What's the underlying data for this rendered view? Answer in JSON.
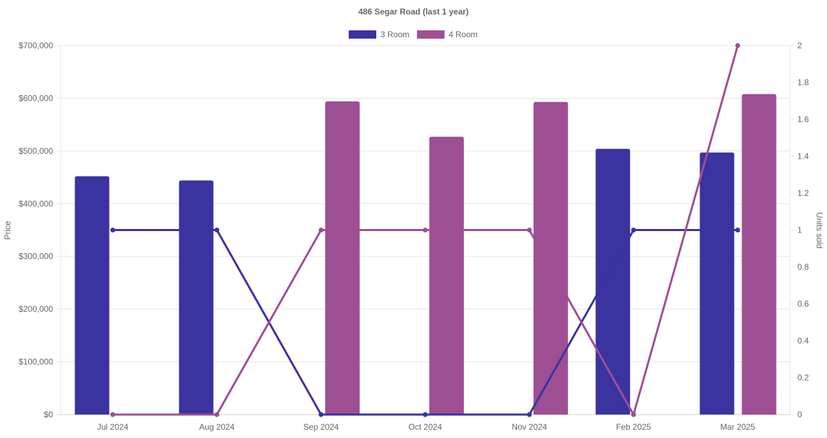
{
  "chart_data": {
    "type": "bar",
    "title": "486 Segar Road (last 1 year)",
    "categories": [
      "Jul 2024",
      "Aug 2024",
      "Sep 2024",
      "Oct 2024",
      "Nov 2024",
      "Feb 2025",
      "Mar 2025"
    ],
    "ylabel": "Price",
    "y2label": "Units sold",
    "ylim": [
      0,
      700000
    ],
    "y2lim": [
      0,
      2
    ],
    "yticks": [
      "$0",
      "$100,000",
      "$200,000",
      "$300,000",
      "$400,000",
      "$500,000",
      "$600,000",
      "$700,000"
    ],
    "y2ticks": [
      "0",
      "0.2",
      "0.4",
      "0.6",
      "0.8",
      "1",
      "1.2",
      "1.4",
      "1.6",
      "1.8",
      "2"
    ],
    "grid": true,
    "legend_position": "top",
    "series": [
      {
        "name": "3 Room",
        "type": "bar",
        "axis": "price",
        "color": "#3a33a0",
        "values": [
          452000,
          444000,
          null,
          null,
          null,
          504000,
          497000
        ]
      },
      {
        "name": "4 Room",
        "type": "bar",
        "axis": "price",
        "color": "#9e4f93",
        "values": [
          null,
          null,
          594000,
          527000,
          593000,
          null,
          608000
        ]
      },
      {
        "name": "3 Room",
        "type": "line",
        "axis": "units",
        "color": "#3a33a0",
        "values": [
          1,
          1,
          0,
          0,
          0,
          1,
          1
        ]
      },
      {
        "name": "4 Room",
        "type": "line",
        "axis": "units",
        "color": "#9e4f93",
        "values": [
          0,
          0,
          1,
          1,
          1,
          0,
          2
        ]
      }
    ],
    "legend": [
      {
        "label": "3 Room",
        "color": "#3a33a0"
      },
      {
        "label": "4 Room",
        "color": "#9e4f93"
      }
    ]
  }
}
